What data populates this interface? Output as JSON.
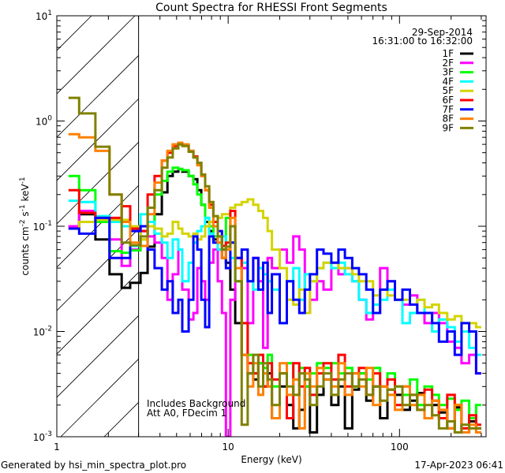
{
  "chart_data": {
    "type": "line",
    "step": true,
    "title": "Count Spectra for RHESSI Front Segments",
    "xlabel": "Energy (keV)",
    "ylabel": {
      "base": "counts cm",
      "e1": "-2",
      "mid1": " s",
      "e2": "-1",
      "mid2": " keV",
      "e3": "-1"
    },
    "xscale": "log",
    "yscale": "log",
    "xlim": [
      1,
      320
    ],
    "ylim": [
      0.001,
      10
    ],
    "xticks": [
      {
        "v": 1,
        "label": "1"
      },
      {
        "v": 10,
        "label": "10"
      },
      {
        "v": 100,
        "label": "100"
      }
    ],
    "yticks": [
      {
        "v": 10,
        "base": "10",
        "exp": "1"
      },
      {
        "v": 1,
        "base": "10",
        "exp": "0"
      },
      {
        "v": 0.1,
        "base": "10",
        "exp": "-1"
      },
      {
        "v": 0.01,
        "base": "10",
        "exp": "-2"
      },
      {
        "v": 0.001,
        "base": "10",
        "exp": "-3"
      }
    ],
    "hatched_region_keV": [
      1,
      3
    ],
    "date": "29-Sep-2014",
    "time_range": "16:31:00 to 16:32:00",
    "annotations": [
      "Includes Background",
      "Att A0, FDecim 1"
    ],
    "legend_position": "top-right",
    "energy_edges": [
      1.17,
      1.35,
      1.68,
      2.03,
      2.39,
      2.68,
      3.08,
      3.39,
      3.72,
      4.1,
      4.42,
      4.75,
      5.12,
      5.4,
      5.88,
      6.27,
      6.61,
      6.97,
      7.34,
      7.75,
      8.2,
      8.7,
      9.2,
      9.7,
      10.3,
      11,
      12,
      13,
      14,
      15,
      16,
      17,
      18,
      20,
      22,
      24,
      26,
      28,
      30,
      33,
      36,
      40,
      44,
      48,
      53,
      58,
      64,
      70,
      77,
      85,
      94,
      104,
      115,
      127,
      140,
      155,
      170,
      190,
      210,
      230,
      255,
      280,
      300
    ],
    "series": [
      {
        "name": "1F",
        "color": "#000000",
        "values": [
          0.1,
          0.13,
          0.075,
          0.035,
          0.026,
          0.029,
          0.036,
          0.064,
          0.13,
          0.21,
          0.3,
          0.33,
          0.35,
          0.33,
          0.3,
          0.28,
          0.22,
          0.16,
          0.11,
          0.09,
          0.075,
          0.06,
          0.05,
          0.045,
          0.025,
          0.012,
          0.006,
          0.004,
          0.0035,
          0.005,
          0.003,
          0.004,
          0.0015,
          0.003,
          0.002,
          0.0012,
          0.0018,
          0.003,
          0.0011,
          0.0025,
          0.0035,
          0.002,
          0.003,
          0.0012,
          0.0028,
          0.004,
          0.0022,
          0.003,
          0.0015,
          0.0028,
          0.0025,
          0.0018,
          0.0022,
          0.0026,
          0.0015,
          0.002,
          0.0017,
          0.0012,
          0.0019,
          0.0011,
          0.0014,
          0.0012
        ]
      },
      {
        "name": "2F",
        "color": "#ff00ff",
        "values": [
          0.1,
          0.14,
          0.11,
          0.075,
          0.042,
          0.06,
          0.09,
          0.08,
          0.07,
          0.05,
          0.02,
          0.035,
          0.06,
          0.025,
          0.013,
          0.015,
          0.04,
          0.03,
          0.02,
          0.045,
          0.06,
          0.03,
          0.015,
          0.001,
          0.02,
          0.05,
          0.04,
          0.012,
          0.05,
          0.03,
          0.007,
          0.05,
          0.04,
          0.06,
          0.045,
          0.08,
          0.06,
          0.015,
          0.02,
          0.03,
          0.025,
          0.045,
          0.035,
          0.04,
          0.03,
          0.02,
          0.013,
          0.015,
          0.04,
          0.03,
          0.02,
          0.018,
          0.022,
          0.015,
          0.012,
          0.015,
          0.012,
          0.008,
          0.007,
          0.005,
          0.006,
          0.004
        ]
      },
      {
        "name": "3F",
        "color": "#00ff00",
        "values": [
          0.3,
          0.22,
          0.11,
          0.058,
          0.056,
          0.059,
          0.075,
          0.11,
          0.2,
          0.27,
          0.33,
          0.36,
          0.35,
          0.34,
          0.3,
          0.25,
          0.2,
          0.16,
          0.12,
          0.1,
          0.08,
          0.07,
          0.06,
          0.12,
          0.07,
          0.03,
          0.012,
          0.006,
          0.004,
          0.005,
          0.0045,
          0.006,
          0.003,
          0.004,
          0.005,
          0.0035,
          0.0045,
          0.003,
          0.004,
          0.005,
          0.0045,
          0.005,
          0.004,
          0.0045,
          0.003,
          0.004,
          0.0035,
          0.0045,
          0.003,
          0.004,
          0.003,
          0.0025,
          0.0035,
          0.002,
          0.003,
          0.0025,
          0.002,
          0.0023,
          0.0018,
          0.0022,
          0.0015,
          0.002
        ]
      },
      {
        "name": "4F",
        "color": "#00ffff",
        "values": [
          0.175,
          0.17,
          0.125,
          0.11,
          0.1,
          0.065,
          0.13,
          0.11,
          0.085,
          0.07,
          0.05,
          0.075,
          0.06,
          0.03,
          0.045,
          0.07,
          0.09,
          0.1,
          0.12,
          0.085,
          0.07,
          0.06,
          0.08,
          0.06,
          0.05,
          0.03,
          0.045,
          0.03,
          0.025,
          0.04,
          0.035,
          0.03,
          0.025,
          0.012,
          0.03,
          0.04,
          0.02,
          0.035,
          0.03,
          0.04,
          0.045,
          0.04,
          0.045,
          0.035,
          0.03,
          0.02,
          0.015,
          0.018,
          0.02,
          0.025,
          0.02,
          0.012,
          0.015,
          0.02,
          0.015,
          0.01,
          0.013,
          0.011,
          0.008,
          0.01,
          0.007,
          0.006
        ]
      },
      {
        "name": "5F",
        "color": "#d4d400",
        "values": [
          0.095,
          0.11,
          0.115,
          0.115,
          0.115,
          0.1,
          0.075,
          0.1,
          0.095,
          0.08,
          0.085,
          0.11,
          0.095,
          0.085,
          0.08,
          0.085,
          0.075,
          0.08,
          0.1,
          0.11,
          0.11,
          0.12,
          0.13,
          0.13,
          0.15,
          0.16,
          0.17,
          0.18,
          0.16,
          0.14,
          0.12,
          0.09,
          0.06,
          0.04,
          0.02,
          0.018,
          0.025,
          0.015,
          0.03,
          0.04,
          0.045,
          0.045,
          0.04,
          0.04,
          0.035,
          0.03,
          0.03,
          0.022,
          0.025,
          0.022,
          0.02,
          0.02,
          0.018,
          0.02,
          0.017,
          0.018,
          0.015,
          0.013,
          0.014,
          0.012,
          0.012,
          0.011
        ]
      },
      {
        "name": "6F",
        "color": "#ff0000",
        "values": [
          0.22,
          0.134,
          0.12,
          0.12,
          0.155,
          0.095,
          0.09,
          0.2,
          0.3,
          0.42,
          0.5,
          0.58,
          0.62,
          0.58,
          0.52,
          0.46,
          0.4,
          0.3,
          0.22,
          0.16,
          0.11,
          0.08,
          0.065,
          0.07,
          0.14,
          0.05,
          0.012,
          0.005,
          0.004,
          0.006,
          0.003,
          0.005,
          0.0035,
          0.004,
          0.0015,
          0.005,
          0.003,
          0.0045,
          0.0025,
          0.004,
          0.005,
          0.0035,
          0.006,
          0.003,
          0.004,
          0.0045,
          0.0025,
          0.004,
          0.003,
          0.0035,
          0.002,
          0.003,
          0.0025,
          0.0018,
          0.0028,
          0.0022,
          0.0015,
          0.0025,
          0.002,
          0.0012,
          0.0016,
          0.0013
        ]
      },
      {
        "name": "7F",
        "color": "#0000ff",
        "values": [
          0.095,
          0.085,
          0.12,
          0.05,
          0.05,
          0.09,
          0.1,
          0.06,
          0.04,
          0.025,
          0.03,
          0.015,
          0.02,
          0.01,
          0.02,
          0.08,
          0.06,
          0.02,
          0.011,
          0.08,
          0.07,
          0.09,
          0.06,
          0.04,
          0.07,
          0.05,
          0.06,
          0.03,
          0.05,
          0.025,
          0.045,
          0.015,
          0.035,
          0.012,
          0.03,
          0.02,
          0.015,
          0.025,
          0.035,
          0.06,
          0.055,
          0.045,
          0.06,
          0.05,
          0.04,
          0.035,
          0.025,
          0.015,
          0.025,
          0.03,
          0.02,
          0.025,
          0.018,
          0.015,
          0.015,
          0.012,
          0.008,
          0.01,
          0.006,
          0.012,
          0.01,
          0.004
        ]
      },
      {
        "name": "8F",
        "color": "#ff8000",
        "values": [
          0.75,
          0.7,
          0.52,
          0.2,
          0.11,
          0.07,
          0.065,
          0.13,
          0.26,
          0.42,
          0.52,
          0.6,
          0.62,
          0.6,
          0.52,
          0.45,
          0.38,
          0.3,
          0.22,
          0.15,
          0.1,
          0.07,
          0.05,
          0.06,
          0.12,
          0.04,
          0.006,
          0.003,
          0.005,
          0.0025,
          0.004,
          0.003,
          0.0015,
          0.005,
          0.0025,
          0.0035,
          0.0012,
          0.004,
          0.003,
          0.0045,
          0.0035,
          0.003,
          0.005,
          0.0025,
          0.004,
          0.003,
          0.0045,
          0.002,
          0.003,
          0.0025,
          0.0018,
          0.003,
          0.002,
          0.0025,
          0.0015,
          0.0022,
          0.0018,
          0.0012,
          0.002,
          0.0011,
          0.0013,
          0.0011
        ]
      },
      {
        "name": "9F",
        "color": "#808000",
        "values": [
          1.66,
          1.18,
          0.57,
          0.2,
          0.07,
          0.066,
          0.08,
          0.15,
          0.22,
          0.36,
          0.45,
          0.55,
          0.6,
          0.58,
          0.51,
          0.45,
          0.4,
          0.31,
          0.24,
          0.17,
          0.125,
          0.08,
          0.06,
          0.064,
          0.1,
          0.03,
          0.0013,
          0.004,
          0.006,
          0.003,
          0.005,
          0.0035,
          0.002,
          0.004,
          0.003,
          0.0025,
          0.004,
          0.0035,
          0.002,
          0.003,
          0.004,
          0.0025,
          0.0035,
          0.004,
          0.003,
          0.0035,
          0.0025,
          0.003,
          0.0022,
          0.0028,
          0.003,
          0.002,
          0.0025,
          0.0018,
          0.002,
          0.0016,
          0.0012,
          0.0014,
          0.0011,
          0.0013,
          0.0012,
          0.0012
        ]
      }
    ]
  },
  "footer": {
    "generated_by": "Generated by hsi_min_spectra_plot.pro",
    "timestamp": "17-Apr-2023 06:41"
  }
}
